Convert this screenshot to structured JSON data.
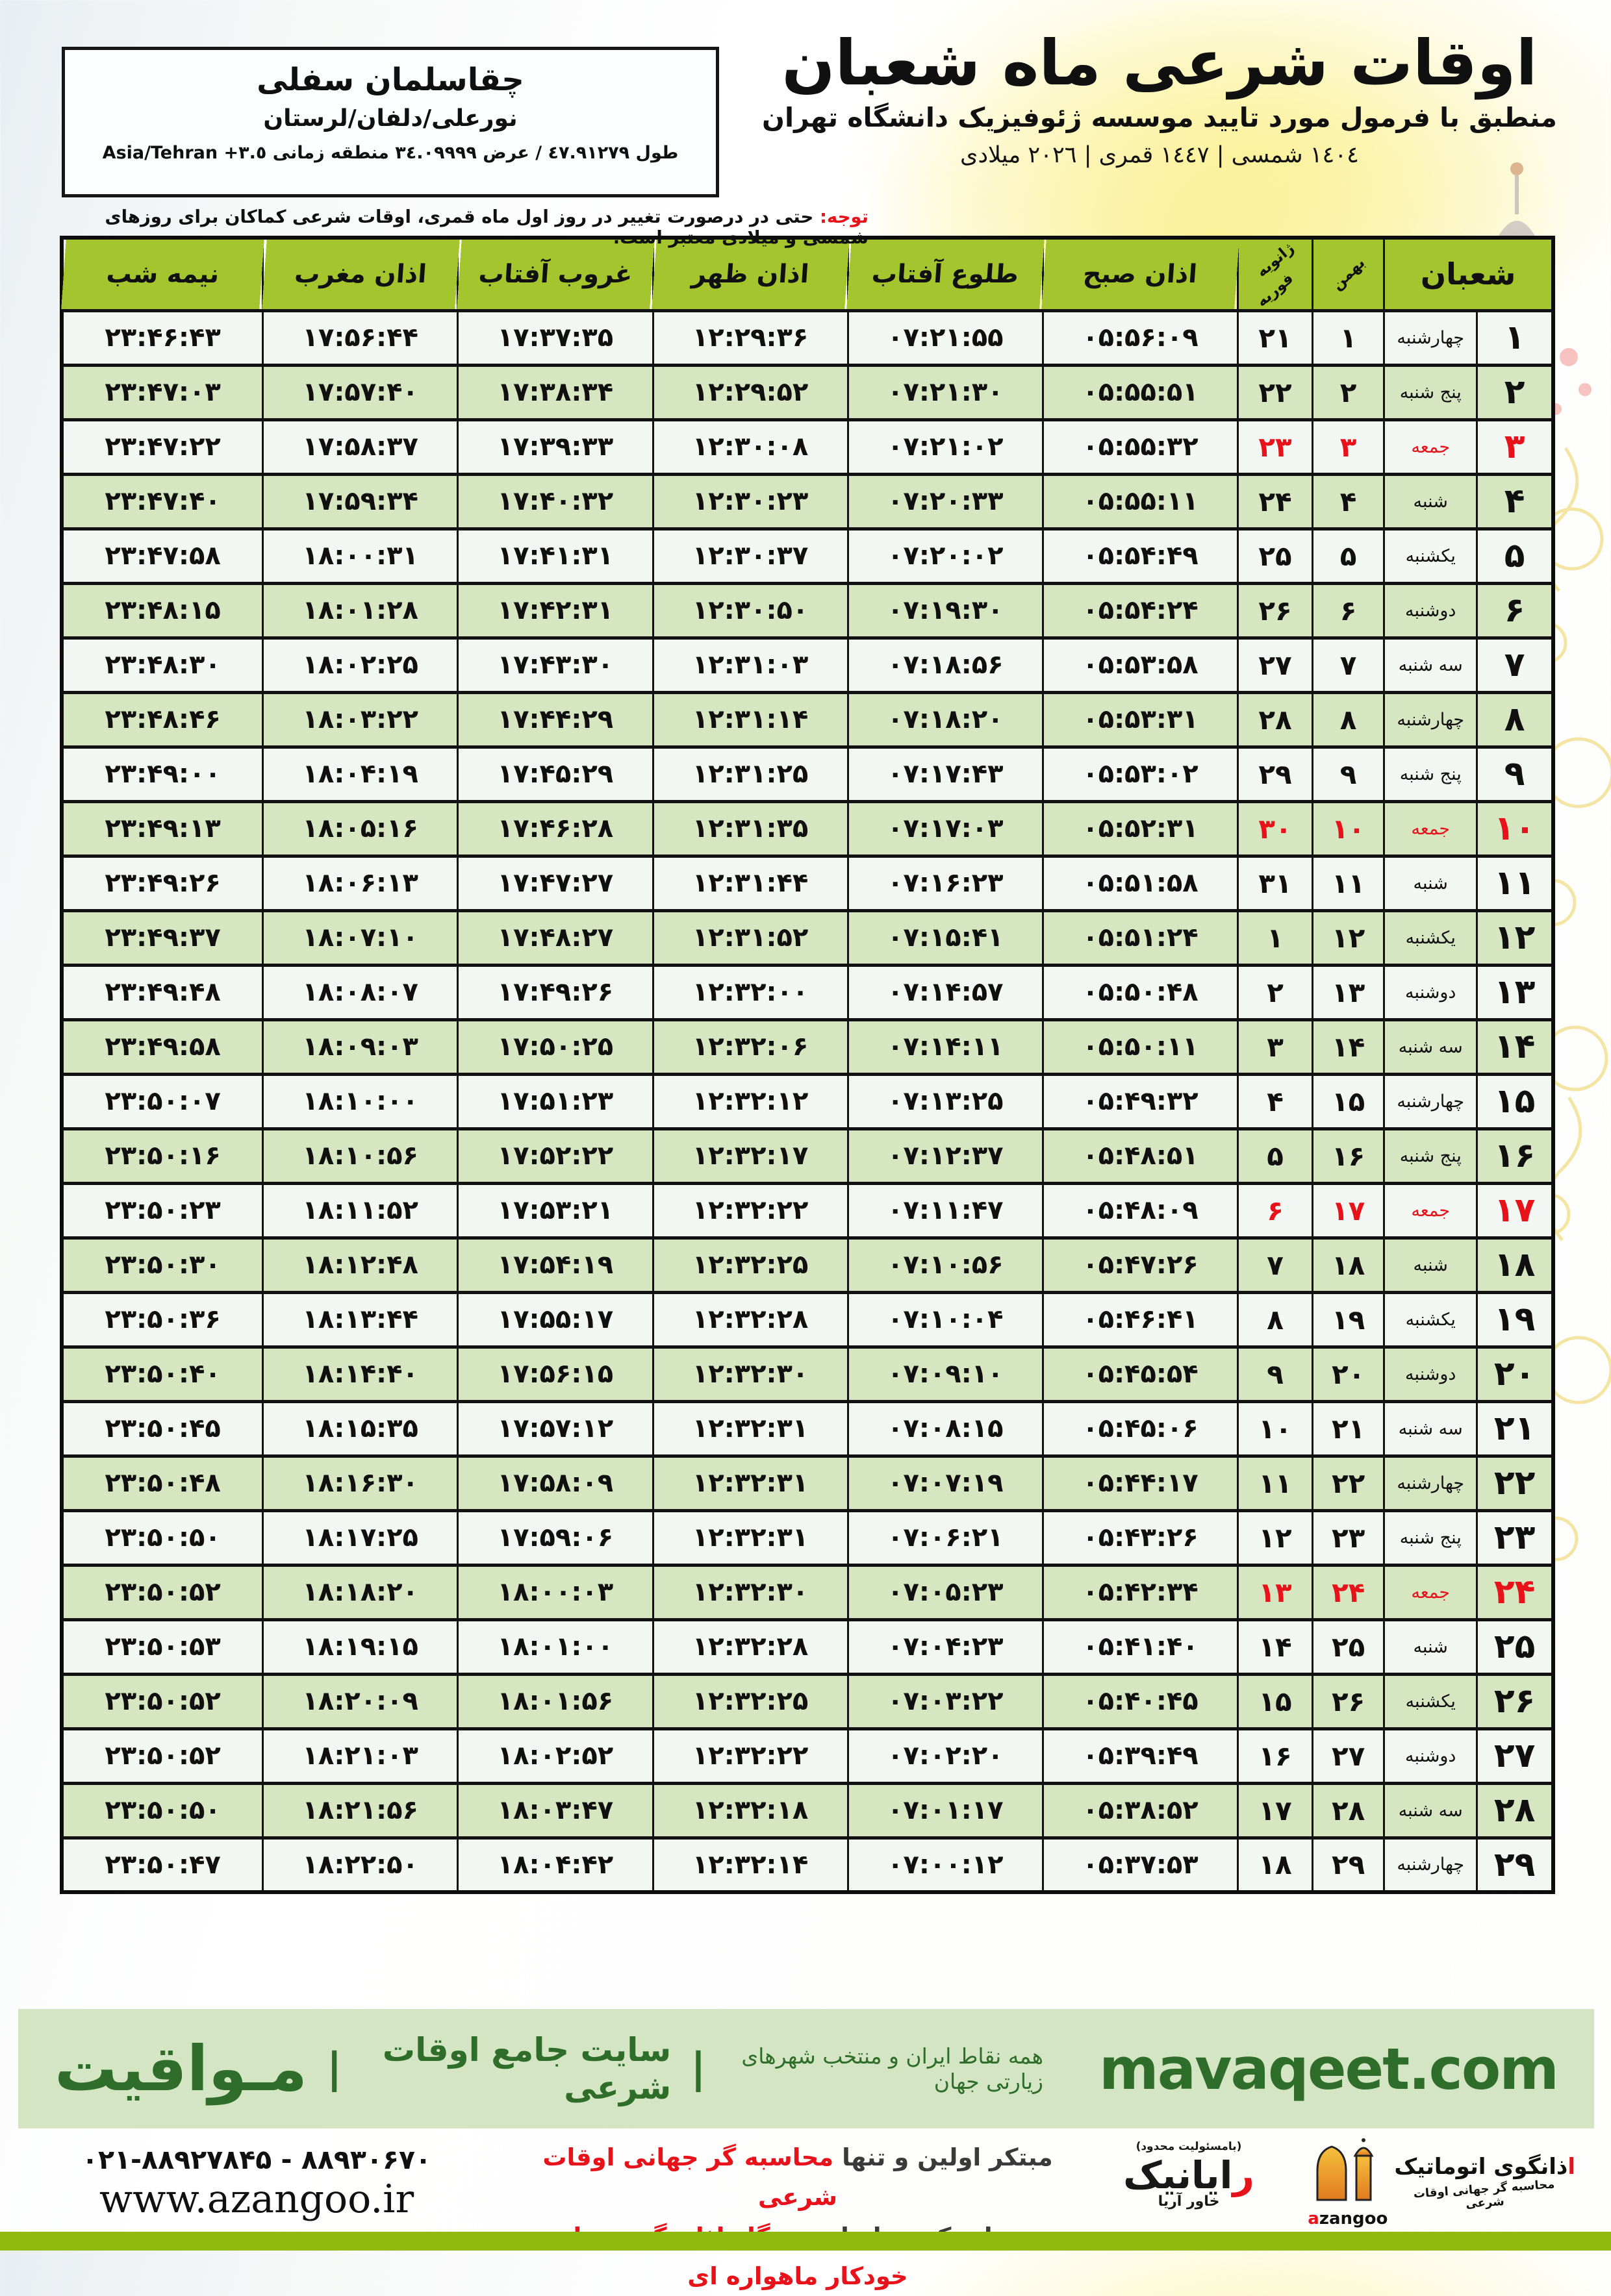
{
  "colors": {
    "accent_red": "#e8121a",
    "header_green": "#a5c52e",
    "row_green": "#d5e6c1",
    "row_white": "#f3f7f3",
    "strip_green": "#d3e5c2",
    "strip_text_green": "#2f6d2a",
    "bottom_bar_green": "#90ba10"
  },
  "header": {
    "title": "اوقات شرعی ماه شعبان",
    "subtitle": "منطبق با فرمول مورد تایید موسسه ژئوفیزیک دانشگاه تهران",
    "dates_line": "١٤٠٤ شمسی | ١٤٤٧ قمری | ٢٠٢٦ میلادی",
    "location": {
      "name": "چقاسلمان سفلی",
      "region": "نورعلی/دلفان/لرستان",
      "coords": "طول ٤٧.٩١٢٧٩ / عرض ٣٤.٠٩٩٩٩ منطقه زمانی ٣.٥+ Asia/Tehran"
    },
    "notice_label": "توجه:",
    "notice_text": " حتی در درصورت تغییر در روز اول ماه قمری، اوقات شرعی کماکان برای روزهای شمسی و میلادی معتبر است."
  },
  "table": {
    "headers": {
      "shaban": "شعبان",
      "bahman": "بهمن",
      "jan": "ژانویه",
      "feb": "فوریه",
      "sobh": "اذان صبح",
      "tolu": "طلوع آفتاب",
      "zohr": "اذان ظهر",
      "ghorub": "غروب آفتاب",
      "maghreb": "اذان مغرب",
      "nimeshab": "نیمه شب"
    },
    "rows": [
      {
        "day": "۱",
        "weekday": "چهارشنبه",
        "bahman": "۱",
        "gregorian": "۲۱",
        "sobh": "۰۵:۵۶:۰۹",
        "tolu": "۰۷:۲۱:۵۵",
        "zohr": "۱۲:۲۹:۳۶",
        "ghorub": "۱۷:۳۷:۳۵",
        "maghreb": "۱۷:۵۶:۴۴",
        "nimeshab": "۲۳:۴۶:۴۳",
        "friday": false
      },
      {
        "day": "۲",
        "weekday": "پنج شنبه",
        "bahman": "۲",
        "gregorian": "۲۲",
        "sobh": "۰۵:۵۵:۵۱",
        "tolu": "۰۷:۲۱:۳۰",
        "zohr": "۱۲:۲۹:۵۲",
        "ghorub": "۱۷:۳۸:۳۴",
        "maghreb": "۱۷:۵۷:۴۰",
        "nimeshab": "۲۳:۴۷:۰۳",
        "friday": false
      },
      {
        "day": "۳",
        "weekday": "جمعه",
        "bahman": "۳",
        "gregorian": "۲۳",
        "sobh": "۰۵:۵۵:۳۲",
        "tolu": "۰۷:۲۱:۰۲",
        "zohr": "۱۲:۳۰:۰۸",
        "ghorub": "۱۷:۳۹:۳۳",
        "maghreb": "۱۷:۵۸:۳۷",
        "nimeshab": "۲۳:۴۷:۲۲",
        "friday": true
      },
      {
        "day": "۴",
        "weekday": "شنبه",
        "bahman": "۴",
        "gregorian": "۲۴",
        "sobh": "۰۵:۵۵:۱۱",
        "tolu": "۰۷:۲۰:۳۳",
        "zohr": "۱۲:۳۰:۲۳",
        "ghorub": "۱۷:۴۰:۳۲",
        "maghreb": "۱۷:۵۹:۳۴",
        "nimeshab": "۲۳:۴۷:۴۰",
        "friday": false
      },
      {
        "day": "۵",
        "weekday": "یکشنبه",
        "bahman": "۵",
        "gregorian": "۲۵",
        "sobh": "۰۵:۵۴:۴۹",
        "tolu": "۰۷:۲۰:۰۲",
        "zohr": "۱۲:۳۰:۳۷",
        "ghorub": "۱۷:۴۱:۳۱",
        "maghreb": "۱۸:۰۰:۳۱",
        "nimeshab": "۲۳:۴۷:۵۸",
        "friday": false
      },
      {
        "day": "۶",
        "weekday": "دوشنبه",
        "bahman": "۶",
        "gregorian": "۲۶",
        "sobh": "۰۵:۵۴:۲۴",
        "tolu": "۰۷:۱۹:۳۰",
        "zohr": "۱۲:۳۰:۵۰",
        "ghorub": "۱۷:۴۲:۳۱",
        "maghreb": "۱۸:۰۱:۲۸",
        "nimeshab": "۲۳:۴۸:۱۵",
        "friday": false
      },
      {
        "day": "۷",
        "weekday": "سه شنبه",
        "bahman": "۷",
        "gregorian": "۲۷",
        "sobh": "۰۵:۵۳:۵۸",
        "tolu": "۰۷:۱۸:۵۶",
        "zohr": "۱۲:۳۱:۰۳",
        "ghorub": "۱۷:۴۳:۳۰",
        "maghreb": "۱۸:۰۲:۲۵",
        "nimeshab": "۲۳:۴۸:۳۰",
        "friday": false
      },
      {
        "day": "۸",
        "weekday": "چهارشنبه",
        "bahman": "۸",
        "gregorian": "۲۸",
        "sobh": "۰۵:۵۳:۳۱",
        "tolu": "۰۷:۱۸:۲۰",
        "zohr": "۱۲:۳۱:۱۴",
        "ghorub": "۱۷:۴۴:۲۹",
        "maghreb": "۱۸:۰۳:۲۲",
        "nimeshab": "۲۳:۴۸:۴۶",
        "friday": false
      },
      {
        "day": "۹",
        "weekday": "پنج شنبه",
        "bahman": "۹",
        "gregorian": "۲۹",
        "sobh": "۰۵:۵۳:۰۲",
        "tolu": "۰۷:۱۷:۴۳",
        "zohr": "۱۲:۳۱:۲۵",
        "ghorub": "۱۷:۴۵:۲۹",
        "maghreb": "۱۸:۰۴:۱۹",
        "nimeshab": "۲۳:۴۹:۰۰",
        "friday": false
      },
      {
        "day": "۱۰",
        "weekday": "جمعه",
        "bahman": "۱۰",
        "gregorian": "۳۰",
        "sobh": "۰۵:۵۲:۳۱",
        "tolu": "۰۷:۱۷:۰۳",
        "zohr": "۱۲:۳۱:۳۵",
        "ghorub": "۱۷:۴۶:۲۸",
        "maghreb": "۱۸:۰۵:۱۶",
        "nimeshab": "۲۳:۴۹:۱۳",
        "friday": true
      },
      {
        "day": "۱۱",
        "weekday": "شنبه",
        "bahman": "۱۱",
        "gregorian": "۳۱",
        "sobh": "۰۵:۵۱:۵۸",
        "tolu": "۰۷:۱۶:۲۳",
        "zohr": "۱۲:۳۱:۴۴",
        "ghorub": "۱۷:۴۷:۲۷",
        "maghreb": "۱۸:۰۶:۱۳",
        "nimeshab": "۲۳:۴۹:۲۶",
        "friday": false
      },
      {
        "day": "۱۲",
        "weekday": "یکشنبه",
        "bahman": "۱۲",
        "gregorian": "۱",
        "sobh": "۰۵:۵۱:۲۴",
        "tolu": "۰۷:۱۵:۴۱",
        "zohr": "۱۲:۳۱:۵۲",
        "ghorub": "۱۷:۴۸:۲۷",
        "maghreb": "۱۸:۰۷:۱۰",
        "nimeshab": "۲۳:۴۹:۳۷",
        "friday": false
      },
      {
        "day": "۱۳",
        "weekday": "دوشنبه",
        "bahman": "۱۳",
        "gregorian": "۲",
        "sobh": "۰۵:۵۰:۴۸",
        "tolu": "۰۷:۱۴:۵۷",
        "zohr": "۱۲:۳۲:۰۰",
        "ghorub": "۱۷:۴۹:۲۶",
        "maghreb": "۱۸:۰۸:۰۷",
        "nimeshab": "۲۳:۴۹:۴۸",
        "friday": false
      },
      {
        "day": "۱۴",
        "weekday": "سه شنبه",
        "bahman": "۱۴",
        "gregorian": "۳",
        "sobh": "۰۵:۵۰:۱۱",
        "tolu": "۰۷:۱۴:۱۱",
        "zohr": "۱۲:۳۲:۰۶",
        "ghorub": "۱۷:۵۰:۲۵",
        "maghreb": "۱۸:۰۹:۰۳",
        "nimeshab": "۲۳:۴۹:۵۸",
        "friday": false
      },
      {
        "day": "۱۵",
        "weekday": "چهارشنبه",
        "bahman": "۱۵",
        "gregorian": "۴",
        "sobh": "۰۵:۴۹:۳۲",
        "tolu": "۰۷:۱۳:۲۵",
        "zohr": "۱۲:۳۲:۱۲",
        "ghorub": "۱۷:۵۱:۲۳",
        "maghreb": "۱۸:۱۰:۰۰",
        "nimeshab": "۲۳:۵۰:۰۷",
        "friday": false
      },
      {
        "day": "۱۶",
        "weekday": "پنج شنبه",
        "bahman": "۱۶",
        "gregorian": "۵",
        "sobh": "۰۵:۴۸:۵۱",
        "tolu": "۰۷:۱۲:۳۷",
        "zohr": "۱۲:۳۲:۱۷",
        "ghorub": "۱۷:۵۲:۲۲",
        "maghreb": "۱۸:۱۰:۵۶",
        "nimeshab": "۲۳:۵۰:۱۶",
        "friday": false
      },
      {
        "day": "۱۷",
        "weekday": "جمعه",
        "bahman": "۱۷",
        "gregorian": "۶",
        "sobh": "۰۵:۴۸:۰۹",
        "tolu": "۰۷:۱۱:۴۷",
        "zohr": "۱۲:۳۲:۲۲",
        "ghorub": "۱۷:۵۳:۲۱",
        "maghreb": "۱۸:۱۱:۵۲",
        "nimeshab": "۲۳:۵۰:۲۳",
        "friday": true
      },
      {
        "day": "۱۸",
        "weekday": "شنبه",
        "bahman": "۱۸",
        "gregorian": "۷",
        "sobh": "۰۵:۴۷:۲۶",
        "tolu": "۰۷:۱۰:۵۶",
        "zohr": "۱۲:۳۲:۲۵",
        "ghorub": "۱۷:۵۴:۱۹",
        "maghreb": "۱۸:۱۲:۴۸",
        "nimeshab": "۲۳:۵۰:۳۰",
        "friday": false
      },
      {
        "day": "۱۹",
        "weekday": "یکشنبه",
        "bahman": "۱۹",
        "gregorian": "۸",
        "sobh": "۰۵:۴۶:۴۱",
        "tolu": "۰۷:۱۰:۰۴",
        "zohr": "۱۲:۳۲:۲۸",
        "ghorub": "۱۷:۵۵:۱۷",
        "maghreb": "۱۸:۱۳:۴۴",
        "nimeshab": "۲۳:۵۰:۳۶",
        "friday": false
      },
      {
        "day": "۲۰",
        "weekday": "دوشنبه",
        "bahman": "۲۰",
        "gregorian": "۹",
        "sobh": "۰۵:۴۵:۵۴",
        "tolu": "۰۷:۰۹:۱۰",
        "zohr": "۱۲:۳۲:۳۰",
        "ghorub": "۱۷:۵۶:۱۵",
        "maghreb": "۱۸:۱۴:۴۰",
        "nimeshab": "۲۳:۵۰:۴۰",
        "friday": false
      },
      {
        "day": "۲۱",
        "weekday": "سه شنبه",
        "bahman": "۲۱",
        "gregorian": "۱۰",
        "sobh": "۰۵:۴۵:۰۶",
        "tolu": "۰۷:۰۸:۱۵",
        "zohr": "۱۲:۳۲:۳۱",
        "ghorub": "۱۷:۵۷:۱۲",
        "maghreb": "۱۸:۱۵:۳۵",
        "nimeshab": "۲۳:۵۰:۴۵",
        "friday": false
      },
      {
        "day": "۲۲",
        "weekday": "چهارشنبه",
        "bahman": "۲۲",
        "gregorian": "۱۱",
        "sobh": "۰۵:۴۴:۱۷",
        "tolu": "۰۷:۰۷:۱۹",
        "zohr": "۱۲:۳۲:۳۱",
        "ghorub": "۱۷:۵۸:۰۹",
        "maghreb": "۱۸:۱۶:۳۰",
        "nimeshab": "۲۳:۵۰:۴۸",
        "friday": false
      },
      {
        "day": "۲۳",
        "weekday": "پنج شنبه",
        "bahman": "۲۳",
        "gregorian": "۱۲",
        "sobh": "۰۵:۴۳:۲۶",
        "tolu": "۰۷:۰۶:۲۱",
        "zohr": "۱۲:۳۲:۳۱",
        "ghorub": "۱۷:۵۹:۰۶",
        "maghreb": "۱۸:۱۷:۲۵",
        "nimeshab": "۲۳:۵۰:۵۰",
        "friday": false
      },
      {
        "day": "۲۴",
        "weekday": "جمعه",
        "bahman": "۲۴",
        "gregorian": "۱۳",
        "sobh": "۰۵:۴۲:۳۴",
        "tolu": "۰۷:۰۵:۲۳",
        "zohr": "۱۲:۳۲:۳۰",
        "ghorub": "۱۸:۰۰:۰۳",
        "maghreb": "۱۸:۱۸:۲۰",
        "nimeshab": "۲۳:۵۰:۵۲",
        "friday": true
      },
      {
        "day": "۲۵",
        "weekday": "شنبه",
        "bahman": "۲۵",
        "gregorian": "۱۴",
        "sobh": "۰۵:۴۱:۴۰",
        "tolu": "۰۷:۰۴:۲۳",
        "zohr": "۱۲:۳۲:۲۸",
        "ghorub": "۱۸:۰۱:۰۰",
        "maghreb": "۱۸:۱۹:۱۵",
        "nimeshab": "۲۳:۵۰:۵۳",
        "friday": false
      },
      {
        "day": "۲۶",
        "weekday": "یکشنبه",
        "bahman": "۲۶",
        "gregorian": "۱۵",
        "sobh": "۰۵:۴۰:۴۵",
        "tolu": "۰۷:۰۳:۲۲",
        "zohr": "۱۲:۳۲:۲۵",
        "ghorub": "۱۸:۰۱:۵۶",
        "maghreb": "۱۸:۲۰:۰۹",
        "nimeshab": "۲۳:۵۰:۵۲",
        "friday": false
      },
      {
        "day": "۲۷",
        "weekday": "دوشنبه",
        "bahman": "۲۷",
        "gregorian": "۱۶",
        "sobh": "۰۵:۳۹:۴۹",
        "tolu": "۰۷:۰۲:۲۰",
        "zohr": "۱۲:۳۲:۲۲",
        "ghorub": "۱۸:۰۲:۵۲",
        "maghreb": "۱۸:۲۱:۰۳",
        "nimeshab": "۲۳:۵۰:۵۲",
        "friday": false
      },
      {
        "day": "۲۸",
        "weekday": "سه شنبه",
        "bahman": "۲۸",
        "gregorian": "۱۷",
        "sobh": "۰۵:۳۸:۵۲",
        "tolu": "۰۷:۰۱:۱۷",
        "zohr": "۱۲:۳۲:۱۸",
        "ghorub": "۱۸:۰۳:۴۷",
        "maghreb": "۱۸:۲۱:۵۶",
        "nimeshab": "۲۳:۵۰:۵۰",
        "friday": false
      },
      {
        "day": "۲۹",
        "weekday": "چهارشنبه",
        "bahman": "۲۹",
        "gregorian": "۱۸",
        "sobh": "۰۵:۳۷:۵۳",
        "tolu": "۰۷:۰۰:۱۲",
        "zohr": "۱۲:۳۲:۱۴",
        "ghorub": "۱۸:۰۴:۴۲",
        "maghreb": "۱۸:۲۲:۵۰",
        "nimeshab": "۲۳:۵۰:۴۷",
        "friday": false
      }
    ]
  },
  "mavaqeet": {
    "brand": "مـواقیت",
    "divider": "|",
    "label": "سایت جامع اوقات شرعی",
    "sub": "همه نقاط ایران و منتخب شهرهای زیارتی جهان",
    "domain": "mavaqeet.com"
  },
  "footer": {
    "phones": "۰۲۱-۸۸۹۲۷۸۴۵ - ۸۸۹۳۰۶۷۰",
    "url": "www.azangoo.ir",
    "slogan_line1_pre": "مبتکر اولین و تنها ",
    "slogan_line1_hot": "محاسبه گر جهانی اوقات شرعی",
    "slogan_line2_pre": "و تولید کننده انواع ",
    "slogan_line2_hot": "دستگاه اذان گوی تمام خودکار ماهواره ای",
    "rayanik_note": "(بامسئولیت محدود)",
    "rayanik_name_hot": "ر",
    "rayanik_name_rest": "ایانیک",
    "rayanik_sub": "خاور آریا",
    "azangoo_name_hot": "ا",
    "azangoo_name_rest": "ذانگوی اتوماتیک",
    "azangoo_tag": "محاسبه گر جهانی اوقات شرعی",
    "azangoo_latin_hot": "a",
    "azangoo_latin_rest": "zangoo"
  }
}
